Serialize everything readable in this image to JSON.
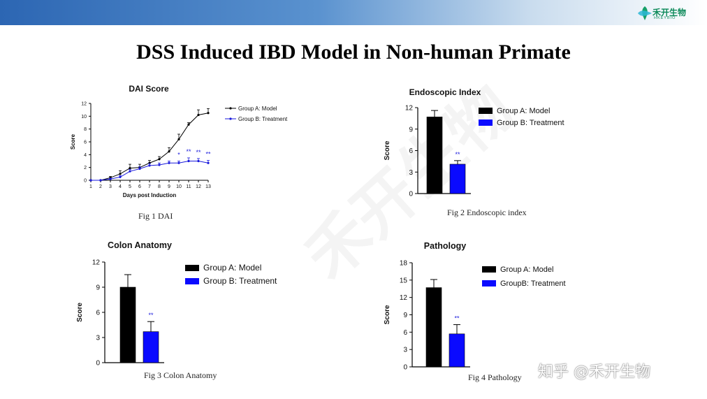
{
  "header": {
    "logo_text": "禾开生物",
    "logo_sub": "HKEYBIO",
    "brand_color": "#0d8a5a"
  },
  "page_title": "DSS Induced IBD Model in Non-human Primate",
  "watermark": "禾开生物",
  "zhihu_watermark": "知乎 @禾开生物",
  "figures": {
    "fig1": {
      "caption": "Fig 1 DAI"
    },
    "fig2": {
      "caption": "Fig 2 Endoscopic index"
    },
    "fig3": {
      "caption": "Fig 3 Colon Anatomy"
    },
    "fig4": {
      "caption": "Fig 4 Pathology"
    }
  },
  "chart_data": [
    {
      "id": "dai",
      "type": "line",
      "title": "DAI Score",
      "xlabel": "Days post Induction",
      "ylabel": "Score",
      "xlim": [
        1,
        13
      ],
      "ylim": [
        0,
        12
      ],
      "xticks": [
        "1",
        "2",
        "3",
        "4",
        "5",
        "6",
        "7",
        "8",
        "9",
        "10",
        "11",
        "12",
        "13"
      ],
      "yticks": [
        "0",
        "2",
        "4",
        "6",
        "8",
        "10",
        "12"
      ],
      "x": [
        1,
        2,
        3,
        4,
        5,
        6,
        7,
        8,
        9,
        10,
        11,
        12,
        13
      ],
      "series": [
        {
          "name": "Group A: Model",
          "color": "#000000",
          "values": [
            0,
            0,
            0.4,
            1.0,
            1.9,
            2.0,
            2.7,
            3.3,
            4.5,
            6.4,
            8.7,
            10.2,
            10.5
          ],
          "errors": [
            0,
            0,
            0.2,
            0.5,
            0.6,
            0.5,
            0.4,
            0.4,
            0.6,
            0.8,
            0.3,
            0.8,
            0.7
          ]
        },
        {
          "name": "Group B: Treatment",
          "color": "#1a1adc",
          "values": [
            0,
            0,
            0.2,
            0.5,
            1.4,
            1.8,
            2.3,
            2.4,
            2.7,
            2.7,
            3.0,
            3.0,
            2.7
          ],
          "errors": [
            0,
            0,
            0.1,
            0.2,
            0.3,
            0.3,
            0.3,
            0.3,
            0.3,
            0.3,
            0.5,
            0.4,
            0.4
          ]
        }
      ],
      "annotations": [
        {
          "x": 10,
          "text": "*"
        },
        {
          "x": 11,
          "text": "**"
        },
        {
          "x": 12,
          "text": "**"
        },
        {
          "x": 13,
          "text": "**"
        }
      ]
    },
    {
      "id": "endo",
      "type": "bar",
      "title": "Endoscopic Index",
      "ylabel": "Score",
      "ylim": [
        0,
        12
      ],
      "yticks": [
        "0",
        "3",
        "6",
        "9",
        "12"
      ],
      "categories": [
        "Group A: Model",
        "Group B: Treatment"
      ],
      "values": [
        10.7,
        4.1
      ],
      "errors": [
        0.9,
        0.5
      ],
      "colors": [
        "#000000",
        "#0a0aff"
      ],
      "annotation": "**"
    },
    {
      "id": "colon",
      "type": "bar",
      "title": "Colon Anatomy",
      "ylabel": "Score",
      "ylim": [
        0,
        12
      ],
      "yticks": [
        "0",
        "3",
        "6",
        "9",
        "12"
      ],
      "categories": [
        "Group A: Model",
        "Group B: Treatment"
      ],
      "values": [
        9.0,
        3.7
      ],
      "errors": [
        1.5,
        1.2
      ],
      "colors": [
        "#000000",
        "#0a0aff"
      ],
      "annotation": "**"
    },
    {
      "id": "path",
      "type": "bar",
      "title": "Pathology",
      "ylabel": "Score",
      "ylim": [
        0,
        18
      ],
      "yticks": [
        "0",
        "3",
        "6",
        "9",
        "12",
        "15",
        "18"
      ],
      "categories": [
        "Group A: Model",
        "GroupB: Treatment"
      ],
      "values": [
        13.7,
        5.7
      ],
      "errors": [
        1.4,
        1.6
      ],
      "colors": [
        "#000000",
        "#0a0aff"
      ],
      "annotation": "**"
    }
  ]
}
